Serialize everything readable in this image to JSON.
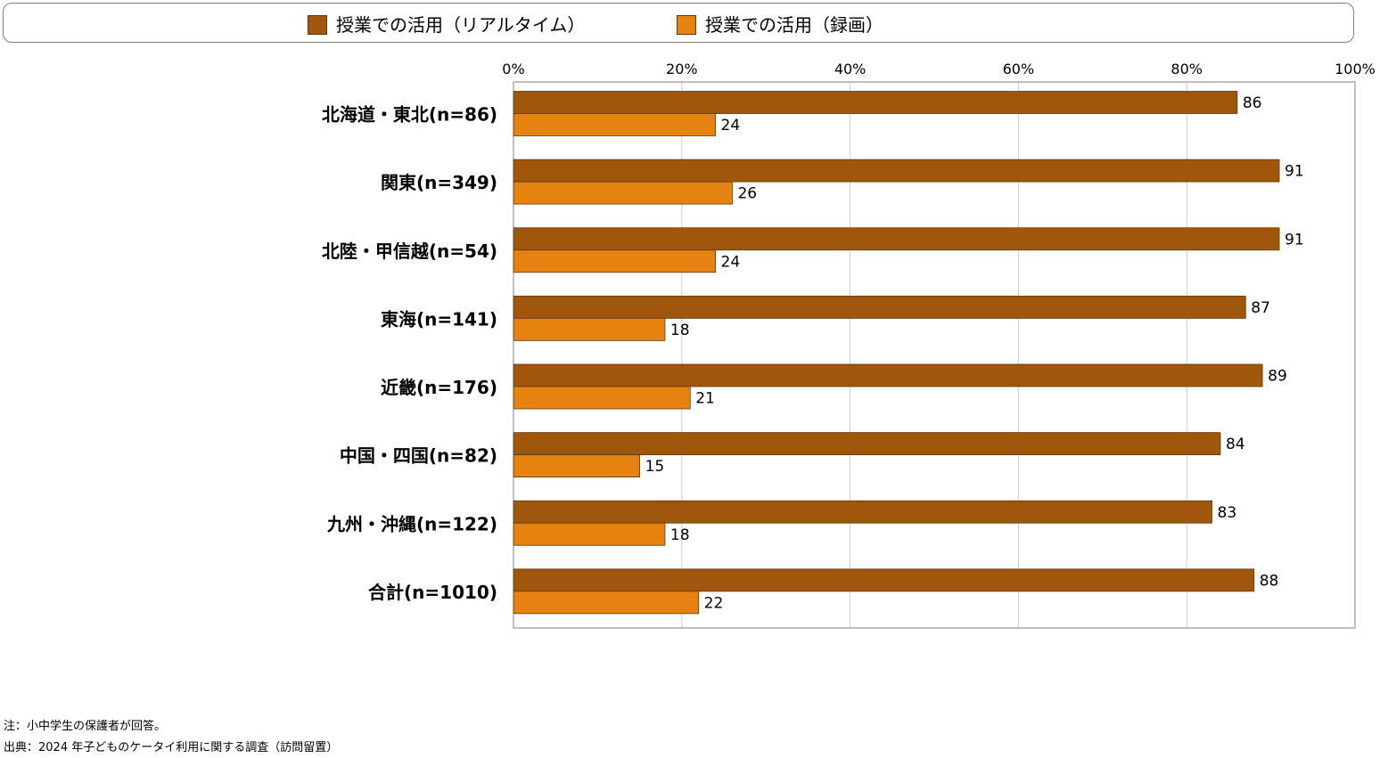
{
  "chart_data": {
    "type": "bar",
    "orientation": "horizontal",
    "categories": [
      "北海道・東北(n=86)",
      "関東(n=349)",
      "北陸・甲信越(n=54)",
      "東海(n=141)",
      "近畿(n=176)",
      "中国・四国(n=82)",
      "九州・沖縄(n=122)",
      "合計(n=1010)"
    ],
    "series": [
      {
        "name": "授業での活用（リアルタイム）",
        "color": "#a0560b",
        "values": [
          86,
          91,
          91,
          87,
          89,
          84,
          83,
          88
        ]
      },
      {
        "name": "授業での活用（録画）",
        "color": "#e6820f",
        "values": [
          24,
          26,
          24,
          18,
          21,
          15,
          18,
          22
        ]
      }
    ],
    "xlim": [
      0,
      100
    ],
    "xticks": [
      0,
      20,
      40,
      60,
      80,
      100
    ],
    "xtick_labels": [
      "0%",
      "20%",
      "40%",
      "60%",
      "80%",
      "100%"
    ],
    "grid": true,
    "legend_position": "top",
    "title": "",
    "xlabel": "",
    "ylabel": ""
  },
  "notes": {
    "note": "注：小中学生の保護者が回答。",
    "source": "出典：2024 年子どものケータイ利用に関する調査（訪問留置）"
  }
}
